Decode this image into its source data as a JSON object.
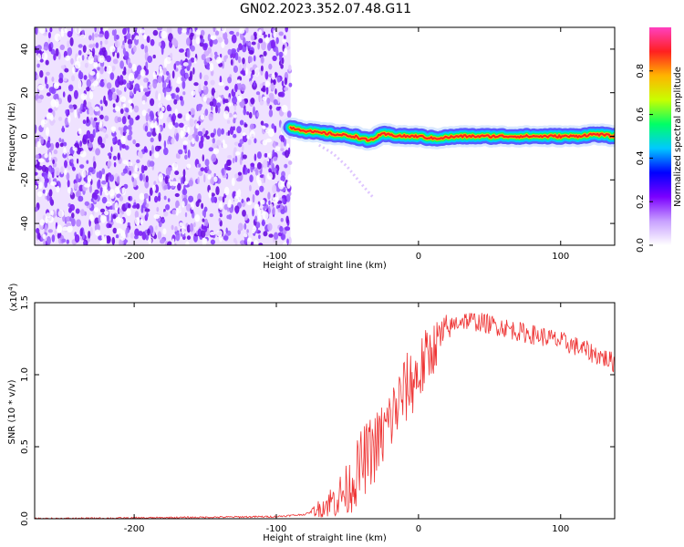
{
  "title": "GN02.2023.352.07.48.G11",
  "chart_data": [
    {
      "type": "heatmap",
      "xlabel": "Height of straight line (km)",
      "ylabel": "Frequency (Hz)",
      "xlim": [
        -270,
        138
      ],
      "ylim": [
        -50,
        50
      ],
      "xticks": [
        -200,
        -100,
        0,
        100
      ],
      "xtick_labels": [
        "-200",
        "-100",
        "0",
        "100"
      ],
      "yticks": [
        -40,
        -20,
        0,
        20,
        40
      ],
      "ytick_labels": [
        "-40",
        "-20",
        "0",
        "20",
        "40"
      ],
      "noise_region_x": [
        -270,
        -90
      ],
      "signal_trace": {
        "x": [
          -90,
          -75,
          -60,
          -45,
          -35,
          -25,
          -10,
          0,
          10,
          30,
          60,
          90,
          110,
          125,
          138
        ],
        "frequency": [
          4,
          2,
          1,
          0,
          -2,
          1,
          0,
          0,
          -1,
          0,
          0,
          0,
          0,
          1,
          0
        ]
      },
      "faint_branch": {
        "x": [
          -70,
          -60,
          -50,
          -40,
          -32
        ],
        "frequency": [
          -4,
          -8,
          -14,
          -22,
          -28
        ]
      },
      "colorbar": {
        "label": "Normalized spectral amplitude",
        "range": [
          0.0,
          1.0
        ],
        "ticks": [
          0.0,
          0.2,
          0.4,
          0.6,
          0.8
        ],
        "tick_labels": [
          "0.0",
          "0.2",
          "0.4",
          "0.6",
          "0.8"
        ],
        "colors": [
          "#ffffff",
          "#c8a0ff",
          "#7b00ff",
          "#0000ff",
          "#00c8ff",
          "#00ff66",
          "#c8ff00",
          "#ffb400",
          "#ff2020",
          "#ff40c0"
        ]
      }
    },
    {
      "type": "line",
      "xlabel": "Height of straight line (km)",
      "ylabel": "SNR (10 * v/v)",
      "scale_label": "(x10",
      "scale_exponent": "4",
      "scale_close": ")",
      "xlim": [
        -270,
        138
      ],
      "ylim": [
        0.0,
        1.5
      ],
      "xticks": [
        -200,
        -100,
        0,
        100
      ],
      "xtick_labels": [
        "-200",
        "-100",
        "0",
        "100"
      ],
      "yticks": [
        0.0,
        0.5,
        1.0,
        1.5
      ],
      "ytick_labels": [
        "0.0",
        "0.5",
        "1.0",
        "1.5"
      ],
      "color": "#ee3333",
      "series": [
        {
          "x": [
            -270,
            -200,
            -150,
            -100,
            -80,
            -72,
            -65,
            -58,
            -50,
            -45,
            -40,
            -35,
            -30,
            -25,
            -20,
            -15,
            -10,
            -5,
            0,
            5,
            10,
            15,
            20,
            25,
            30,
            40,
            50,
            60,
            70,
            80,
            90,
            100,
            110,
            120,
            130,
            138
          ],
          "values": [
            0.0,
            0.005,
            0.01,
            0.015,
            0.03,
            0.06,
            0.1,
            0.14,
            0.2,
            0.28,
            0.38,
            0.45,
            0.5,
            0.58,
            0.68,
            0.78,
            0.88,
            0.95,
            1.0,
            1.1,
            1.18,
            1.25,
            1.3,
            1.35,
            1.38,
            1.37,
            1.35,
            1.33,
            1.3,
            1.28,
            1.26,
            1.23,
            1.2,
            1.16,
            1.12,
            1.08
          ]
        }
      ]
    }
  ]
}
